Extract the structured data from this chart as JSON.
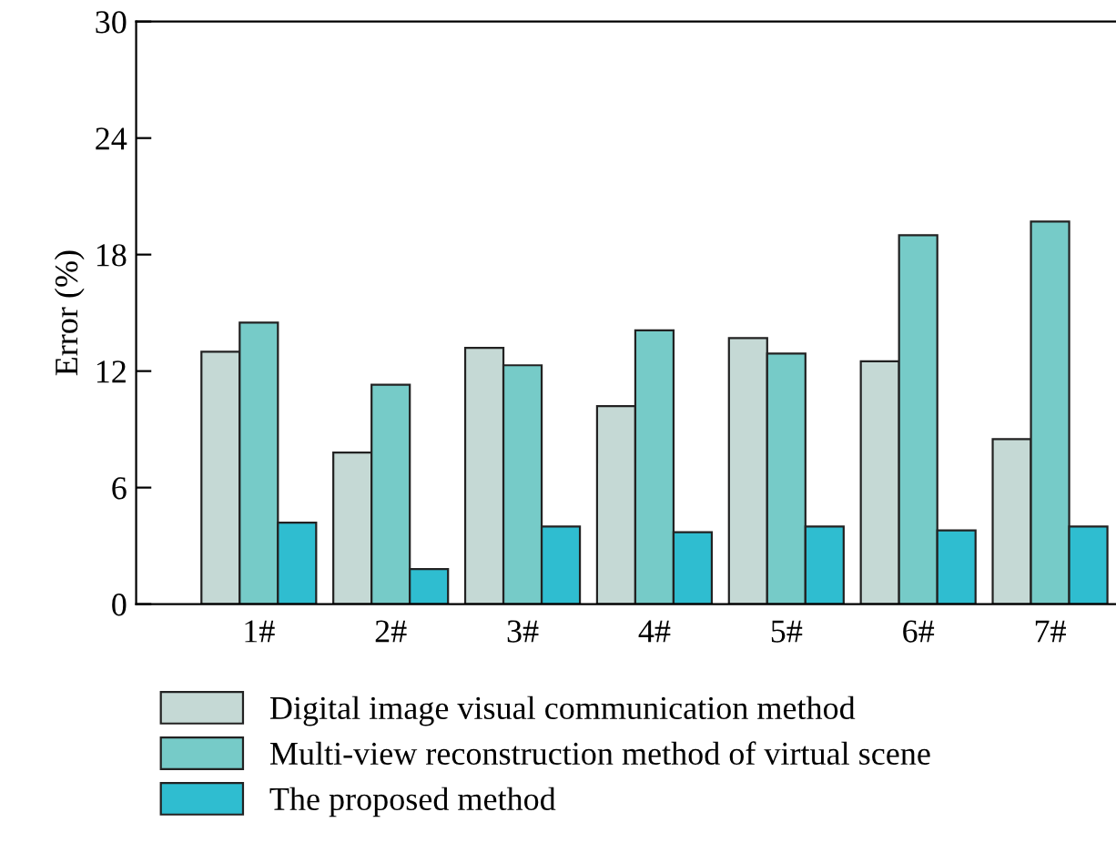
{
  "chart_data": {
    "type": "bar",
    "ylabel": "Error (%)",
    "categories": [
      "1#",
      "2#",
      "3#",
      "4#",
      "5#",
      "6#",
      "7#"
    ],
    "series": [
      {
        "name": "Digital image visual communication method",
        "color": "#c5d9d5",
        "values": [
          13.0,
          7.8,
          13.2,
          10.2,
          13.7,
          12.5,
          8.5
        ]
      },
      {
        "name": "Multi-view reconstruction method of virtual scene",
        "color": "#76cbc8",
        "values": [
          14.5,
          11.3,
          12.3,
          14.1,
          12.9,
          19.0,
          19.7
        ]
      },
      {
        "name": "The proposed method",
        "color": "#2fbdd0",
        "values": [
          4.2,
          1.8,
          4.0,
          3.7,
          4.0,
          3.8,
          4.0
        ]
      }
    ],
    "ylim": [
      0,
      30
    ],
    "yticks": [
      0,
      6,
      12,
      18,
      24,
      30
    ],
    "grid": false,
    "legend": "bottom"
  }
}
